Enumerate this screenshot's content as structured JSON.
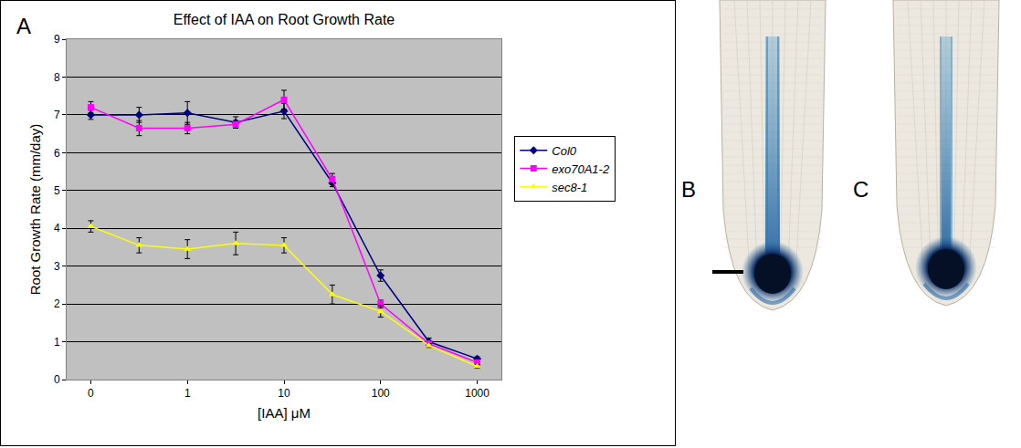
{
  "chart_data": {
    "type": "line",
    "title": "Effect of IAA on Root Growth Rate",
    "xlabel": "[IAA] μM",
    "ylabel": "Root Growth Rate (mm/day)",
    "categories": [
      "0",
      null,
      "1",
      null,
      "10",
      null,
      "100",
      null,
      "1000"
    ],
    "series": [
      {
        "name": "Col0",
        "color": "#000080",
        "marker": "diamond",
        "line_style": "solid",
        "values": [
          7.0,
          7.0,
          7.05,
          6.8,
          7.1,
          5.2,
          2.75,
          1.0,
          0.55
        ],
        "error": [
          0.12,
          0.2,
          0.3,
          0.15,
          0.2,
          0.1,
          0.15,
          0.1,
          0.05
        ]
      },
      {
        "name": "exo70A1-2",
        "color": "#ff00ff",
        "marker": "square",
        "line_style": "solid",
        "values": [
          7.2,
          6.65,
          6.65,
          6.75,
          7.4,
          5.3,
          2.0,
          0.95,
          0.45
        ],
        "error": [
          0.15,
          0.2,
          0.15,
          0.1,
          0.25,
          0.15,
          0.1,
          0.05,
          0.05
        ]
      },
      {
        "name": "sec8-1",
        "color": "#ffff00",
        "marker": "triangle-up",
        "line_style": "solid",
        "values": [
          4.05,
          3.55,
          3.45,
          3.6,
          3.55,
          2.25,
          1.8,
          0.9,
          0.35
        ],
        "error": [
          0.15,
          0.2,
          0.25,
          0.3,
          0.2,
          0.25,
          0.15,
          0.05,
          0.05
        ]
      }
    ],
    "ylim": [
      0,
      9
    ],
    "yticks": [
      0,
      1,
      2,
      3,
      4,
      5,
      6,
      7,
      8,
      9
    ],
    "grid": true,
    "legend": "right"
  },
  "panel_labels": [
    "A",
    "B",
    "C"
  ]
}
